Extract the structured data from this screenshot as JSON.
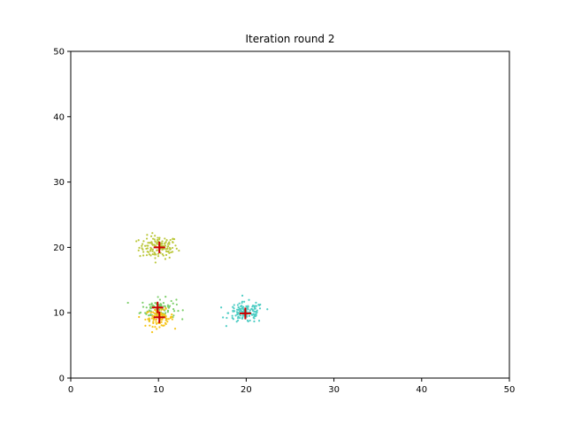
{
  "chart_data": {
    "type": "scatter",
    "title": "Iteration round 2",
    "xlabel": "",
    "ylabel": "",
    "xlim": [
      0,
      50
    ],
    "ylim": [
      0,
      50
    ],
    "xticks": [
      0,
      10,
      20,
      30,
      40,
      50
    ],
    "yticks": [
      0,
      10,
      20,
      30,
      40,
      50
    ],
    "grid": false,
    "clusters": [
      {
        "color": "#bcc83c",
        "center": [
          10,
          20
        ],
        "spread": 1.1,
        "count": 130
      },
      {
        "color": "#7dcf6a",
        "center": [
          10,
          10.6
        ],
        "spread": 1.0,
        "count": 110
      },
      {
        "color": "#f6c51a",
        "center": [
          10.1,
          9.2
        ],
        "spread": 0.8,
        "count": 90
      },
      {
        "color": "#4ecdc4",
        "center": [
          20,
          10
        ],
        "spread": 1.0,
        "count": 140
      }
    ],
    "centroids": {
      "color": "#cc0000",
      "marker": "+",
      "points": [
        {
          "x": 10.1,
          "y": 20
        },
        {
          "x": 9.9,
          "y": 10.8
        },
        {
          "x": 10.1,
          "y": 9.3
        },
        {
          "x": 19.9,
          "y": 9.9
        }
      ]
    }
  }
}
